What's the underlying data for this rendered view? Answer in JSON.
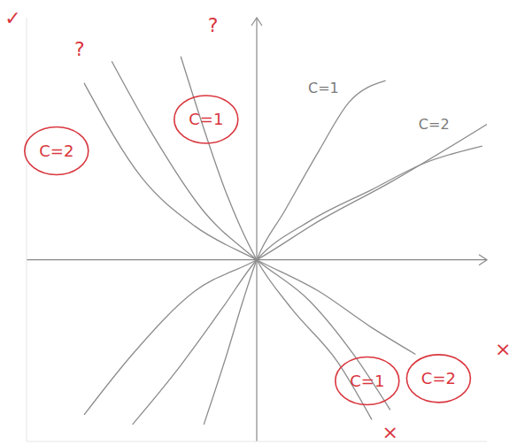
{
  "chart_data": {
    "type": "line",
    "xlim": [
      -1,
      1
    ],
    "ylim": [
      -0.75,
      1
    ],
    "tick_labels": false,
    "grid": false,
    "color": "#8c8c8c",
    "series": [
      {
        "x": [
          -0.23,
          -0.13,
          -0.06,
          0,
          0.12,
          0.27,
          0.4,
          0.56
        ],
        "y": [
          -0.68,
          -0.39,
          -0.17,
          0,
          0.2,
          0.45,
          0.65,
          0.74
        ]
      },
      {
        "x": [
          -0.54,
          -0.35,
          -0.15,
          0,
          0.23,
          0.5,
          0.73,
          0.98
        ],
        "y": [
          -0.68,
          -0.46,
          -0.2,
          0,
          0.16,
          0.29,
          0.4,
          0.47
        ]
      },
      {
        "x": [
          -0.75,
          -0.54,
          -0.27,
          0,
          0.27,
          0.58,
          1.0
        ],
        "y": [
          -0.64,
          -0.39,
          -0.13,
          0,
          0.16,
          0.32,
          0.56
        ]
      },
      {
        "x": [
          -0.33,
          -0.25,
          -0.13,
          0,
          0.15,
          0.35,
          0.5
        ],
        "y": [
          0.84,
          0.6,
          0.27,
          0,
          -0.2,
          -0.42,
          -0.66
        ]
      },
      {
        "x": [
          -0.63,
          -0.46,
          -0.23,
          0,
          0.23,
          0.42,
          0.58
        ],
        "y": [
          0.82,
          0.53,
          0.2,
          0,
          -0.17,
          -0.39,
          -0.62
        ]
      },
      {
        "x": [
          -0.75,
          -0.5,
          -0.27,
          0,
          0.27,
          0.5,
          0.69
        ],
        "y": [
          0.73,
          0.34,
          0.14,
          0,
          -0.13,
          -0.28,
          -0.39
        ]
      }
    ],
    "labels": [
      {
        "text": "C=1",
        "x": 0.29,
        "y": 0.71,
        "color": "#7a7a7a"
      },
      {
        "text": "C=2",
        "x": 0.77,
        "y": 0.56,
        "color": "#7a7a7a"
      }
    ],
    "circled_labels": [
      {
        "text": "C=2",
        "x": -0.87,
        "y": 0.45,
        "color": "#d9363e"
      },
      {
        "text": "C=1",
        "x": -0.22,
        "y": 0.58,
        "color": "#d9363e"
      },
      {
        "text": "C=1",
        "x": 0.48,
        "y": -0.5,
        "color": "#d9363e"
      },
      {
        "text": "C=2",
        "x": 0.79,
        "y": -0.49,
        "color": "#d9363e"
      }
    ],
    "marks": [
      {
        "text": "?",
        "x": -0.77,
        "y": 0.87,
        "color": "#d9363e"
      },
      {
        "text": "?",
        "x": -0.19,
        "y": 0.97,
        "color": "#d9363e"
      },
      {
        "text": "✓",
        "x": -1.06,
        "y": 1.0,
        "color": "#d9363e"
      },
      {
        "text": "×",
        "x": 0.58,
        "y": -0.71,
        "color": "#d9363e"
      },
      {
        "text": "×",
        "x": 1.07,
        "y": -0.37,
        "color": "#d9363e"
      }
    ]
  }
}
